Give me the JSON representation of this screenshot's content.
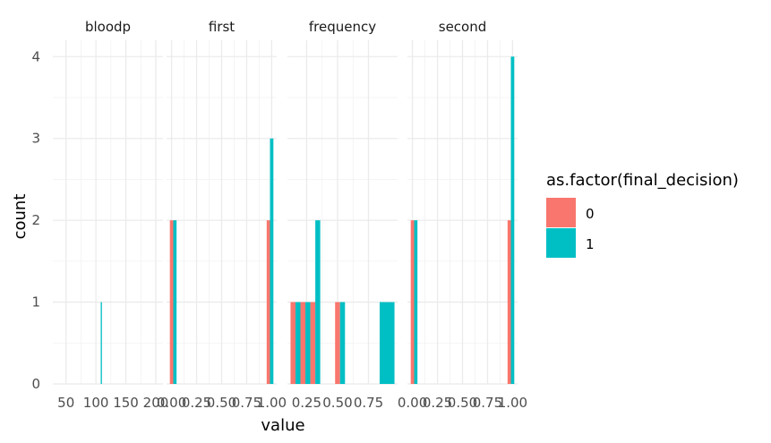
{
  "chart_data": {
    "type": "bar",
    "xlabel": "value",
    "ylabel": "count",
    "ylim": [
      0,
      4.2
    ],
    "yticks": [
      0,
      1,
      2,
      3,
      4
    ],
    "grid": true,
    "legend": {
      "title": "as.factor(final_decision)",
      "placement": "right",
      "items": [
        {
          "label": "0",
          "color": "#F8766D"
        },
        {
          "label": "1",
          "color": "#00BFC4"
        }
      ]
    },
    "facets": [
      {
        "name": "bloodp",
        "xlim": [
          28,
          212
        ],
        "xticks": [
          {
            "value": 50,
            "label": "50"
          },
          {
            "value": 100,
            "label": "100"
          },
          {
            "value": 150,
            "label": "150"
          },
          {
            "value": 200,
            "label": "200"
          }
        ],
        "bins": [
          {
            "x0": 108,
            "x1": 110,
            "series": "1",
            "count": 1
          }
        ]
      },
      {
        "name": "first",
        "xlim": [
          -0.05,
          1.05
        ],
        "xticks": [
          {
            "value": 0,
            "label": "0.00"
          },
          {
            "value": 0.25,
            "label": "0.25"
          },
          {
            "value": 0.5,
            "label": "0.50"
          },
          {
            "value": 0.75,
            "label": "0.75"
          },
          {
            "value": 1,
            "label": "1.00"
          }
        ],
        "bins": [
          {
            "x0": -0.017,
            "x1": 0.017,
            "series": "0",
            "count": 2
          },
          {
            "x0": 0.017,
            "x1": 0.05,
            "series": "1",
            "count": 2
          },
          {
            "x0": 0.95,
            "x1": 0.983,
            "series": "0",
            "count": 2
          },
          {
            "x0": 0.983,
            "x1": 1.017,
            "series": "1",
            "count": 3
          }
        ]
      },
      {
        "name": "frequency",
        "xlim": [
          0.095,
          0.985
        ],
        "xticks": [
          {
            "value": 0.25,
            "label": "0.25"
          },
          {
            "value": 0.5,
            "label": "0.50"
          },
          {
            "value": 0.75,
            "label": "0.75"
          }
        ],
        "bins": [
          {
            "x0": 0.12,
            "x1": 0.16,
            "series": "0",
            "count": 1
          },
          {
            "x0": 0.16,
            "x1": 0.2,
            "series": "1",
            "count": 1
          },
          {
            "x0": 0.2,
            "x1": 0.24,
            "series": "0",
            "count": 1
          },
          {
            "x0": 0.24,
            "x1": 0.28,
            "series": "1",
            "count": 1
          },
          {
            "x0": 0.28,
            "x1": 0.32,
            "series": "0",
            "count": 1
          },
          {
            "x0": 0.32,
            "x1": 0.36,
            "series": "1",
            "count": 2
          },
          {
            "x0": 0.48,
            "x1": 0.52,
            "series": "0",
            "count": 1
          },
          {
            "x0": 0.52,
            "x1": 0.56,
            "series": "1",
            "count": 1
          },
          {
            "x0": 0.84,
            "x1": 0.96,
            "series": "1",
            "count": 1
          }
        ]
      },
      {
        "name": "second",
        "xlim": [
          -0.05,
          1.05
        ],
        "xticks": [
          {
            "value": 0,
            "label": "0.00"
          },
          {
            "value": 0.25,
            "label": "0.25"
          },
          {
            "value": 0.5,
            "label": "0.50"
          },
          {
            "value": 0.75,
            "label": "0.75"
          },
          {
            "value": 1,
            "label": "1.00"
          }
        ],
        "bins": [
          {
            "x0": -0.017,
            "x1": 0.017,
            "series": "0",
            "count": 2
          },
          {
            "x0": 0.017,
            "x1": 0.05,
            "series": "1",
            "count": 2
          },
          {
            "x0": 0.95,
            "x1": 0.983,
            "series": "0",
            "count": 2
          },
          {
            "x0": 0.983,
            "x1": 1.017,
            "series": "1",
            "count": 4
          }
        ]
      }
    ]
  }
}
